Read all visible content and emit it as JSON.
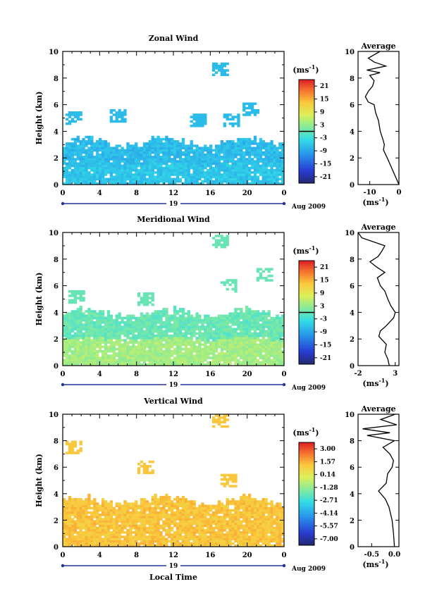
{
  "chart_data": [
    {
      "type": "heatmap",
      "title": "Zonal Wind",
      "ylabel": "Height (km)",
      "xlabel": "",
      "xlim": [
        0,
        24
      ],
      "ylim": [
        0,
        10
      ],
      "xticks": [
        "0",
        "4",
        "8",
        "12",
        "16",
        "20",
        "0"
      ],
      "yticks": [
        "0",
        "2",
        "4",
        "6",
        "8",
        "10"
      ],
      "date_label": "19",
      "date_suffix": "Aug 2009",
      "colorbar": {
        "unit": "(ms",
        "unit_exp": "-1",
        "unit_close": ")",
        "ticks": [
          "21",
          "15",
          "9",
          "3",
          "-3",
          "-9",
          "-15",
          "-21"
        ],
        "range": [
          -24,
          24
        ],
        "zero_line": true
      },
      "field": {
        "base": -6,
        "upper": -7,
        "cloud_top": 3.2,
        "patch": [
          [
            1.3,
            5.0
          ],
          [
            6.0,
            5.2
          ],
          [
            14.6,
            4.9
          ],
          [
            18.4,
            4.9
          ],
          [
            20.5,
            5.7
          ],
          [
            17.0,
            8.6
          ]
        ]
      }
    },
    {
      "type": "heatmap",
      "title": "Meridional Wind",
      "ylabel": "Height (km)",
      "xlabel": "",
      "xlim": [
        0,
        24
      ],
      "ylim": [
        0,
        10
      ],
      "xticks": [
        "0",
        "4",
        "8",
        "12",
        "16",
        "20",
        "0"
      ],
      "yticks": [
        "0",
        "2",
        "4",
        "6",
        "8",
        "10"
      ],
      "date_label": "19",
      "date_suffix": "Aug 2009",
      "colorbar": {
        "unit": "(ms",
        "unit_exp": "-1",
        "unit_close": ")",
        "ticks": [
          "21",
          "15",
          "9",
          "3",
          "-3",
          "-9",
          "-15",
          "-21"
        ],
        "range": [
          -24,
          24
        ],
        "zero_line": true
      },
      "field": {
        "base": 4,
        "upper": 0,
        "cloud_top": 4.0,
        "patch": [
          [
            1.5,
            5.2
          ],
          [
            9.0,
            5.0
          ],
          [
            18.0,
            6.0
          ],
          [
            22.0,
            6.8
          ],
          [
            17.0,
            9.4
          ]
        ]
      }
    },
    {
      "type": "heatmap",
      "title": "Vertical Wind",
      "ylabel": "Height (km)",
      "xlabel": "Local Time",
      "xlim": [
        0,
        24
      ],
      "ylim": [
        0,
        10
      ],
      "xticks": [
        "0",
        "4",
        "8",
        "12",
        "16",
        "20",
        "0"
      ],
      "yticks": [
        "0",
        "2",
        "4",
        "6",
        "8",
        "10"
      ],
      "date_label": "19",
      "date_suffix": "Aug 2009",
      "colorbar": {
        "unit": "(ms",
        "unit_exp": "-1",
        "unit_close": ")",
        "ticks": [
          "3.00",
          "1.57",
          "0.14",
          "-1.28",
          "-2.71",
          "-4.14",
          "-5.57",
          "-7.00"
        ],
        "range": [
          -7.7,
          3.7
        ],
        "zero_line": false
      },
      "field": {
        "base": 1.2,
        "upper": 1.2,
        "cloud_top": 3.5,
        "patch": [
          [
            1.3,
            7.5
          ],
          [
            9.0,
            6.0
          ],
          [
            18.0,
            5.0
          ],
          [
            17.0,
            9.5
          ]
        ]
      }
    }
  ],
  "profiles": [
    {
      "title": "Average",
      "xticks": [
        "-10",
        "0"
      ],
      "xlim": [
        -14,
        0
      ],
      "xunit": "(ms",
      "xunit_exp": "-1",
      "xunit_close": ")",
      "points": [
        [
          0,
          0.0
        ],
        [
          -1,
          0.5
        ],
        [
          -2,
          1.0
        ],
        [
          -2.8,
          1.4
        ],
        [
          -4,
          2.0
        ],
        [
          -5.3,
          2.6
        ],
        [
          -5.0,
          3.0
        ],
        [
          -5.5,
          3.4
        ],
        [
          -6.4,
          4.0
        ],
        [
          -7,
          4.8
        ],
        [
          -8,
          5.4
        ],
        [
          -8.5,
          6.0
        ],
        [
          -10.5,
          6.2
        ],
        [
          -11.5,
          6.6
        ],
        [
          -10.5,
          7.0
        ],
        [
          -9,
          7.4
        ],
        [
          -8.5,
          7.8
        ],
        [
          -10,
          8.2
        ],
        [
          -6.5,
          8.4
        ],
        [
          -11,
          8.6
        ],
        [
          -4.5,
          8.9
        ],
        [
          -8.5,
          9.2
        ],
        [
          -10.5,
          9.5
        ],
        [
          -6.5,
          10.0
        ]
      ]
    },
    {
      "title": "Average",
      "xticks": [
        "-2",
        "3"
      ],
      "xlim": [
        -2,
        3.5
      ],
      "xunit": "(ms",
      "xunit_exp": "-1",
      "xunit_close": ")",
      "points": [
        [
          2.2,
          0.0
        ],
        [
          2.0,
          0.5
        ],
        [
          1.6,
          1.0
        ],
        [
          1.8,
          1.6
        ],
        [
          0.8,
          2.2
        ],
        [
          1.0,
          2.6
        ],
        [
          1.8,
          3.0
        ],
        [
          2.8,
          3.6
        ],
        [
          3.0,
          4.0
        ],
        [
          2.4,
          4.5
        ],
        [
          2.0,
          5.0
        ],
        [
          1.6,
          5.6
        ],
        [
          1.0,
          6.0
        ],
        [
          0.6,
          6.6
        ],
        [
          1.6,
          7.0
        ],
        [
          0.5,
          7.4
        ],
        [
          -0.4,
          7.8
        ],
        [
          0.7,
          8.2
        ],
        [
          1.2,
          8.6
        ],
        [
          1.6,
          9.0
        ],
        [
          -1.5,
          9.6
        ],
        [
          -2.0,
          10.0
        ]
      ]
    },
    {
      "title": "Average",
      "xticks": [
        "-0.5",
        "0.0"
      ],
      "xlim": [
        -0.8,
        0.1
      ],
      "xunit": "(ms",
      "xunit_exp": "-1",
      "xunit_close": ")",
      "points": [
        [
          0.0,
          0.0
        ],
        [
          -0.02,
          1.0
        ],
        [
          -0.05,
          2.0
        ],
        [
          -0.12,
          3.0
        ],
        [
          -0.2,
          3.6
        ],
        [
          -0.35,
          4.2
        ],
        [
          -0.18,
          4.8
        ],
        [
          -0.15,
          5.5
        ],
        [
          -0.05,
          6.0
        ],
        [
          -0.02,
          6.5
        ],
        [
          -0.1,
          7.0
        ],
        [
          -0.25,
          7.5
        ],
        [
          0.0,
          8.0
        ],
        [
          -0.6,
          8.4
        ],
        [
          -0.1,
          8.6
        ],
        [
          -0.7,
          8.9
        ],
        [
          0.05,
          9.2
        ],
        [
          -0.3,
          9.6
        ],
        [
          0.02,
          10.0
        ]
      ]
    }
  ]
}
